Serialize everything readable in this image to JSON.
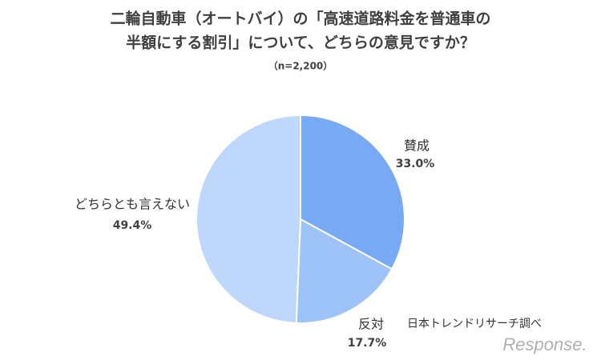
{
  "chart_data": {
    "type": "pie",
    "title": [
      "二輪自動車（オートバイ）の「高速道路料金を普通車の",
      "半額にする割引」について、どちらの意見ですか？"
    ],
    "subtitle": "（n=2,200）",
    "categories": [
      "賛成",
      "反対",
      "どちらとも言えない"
    ],
    "values": [
      33.0,
      17.7,
      49.4
    ],
    "value_labels": [
      "33.0%",
      "17.7%",
      "49.4%"
    ],
    "colors": [
      "#78a9f5",
      "#9ec3f8",
      "#bed7fb"
    ],
    "source": "日本トレンドリサーチ調べ",
    "watermark": "Response."
  }
}
